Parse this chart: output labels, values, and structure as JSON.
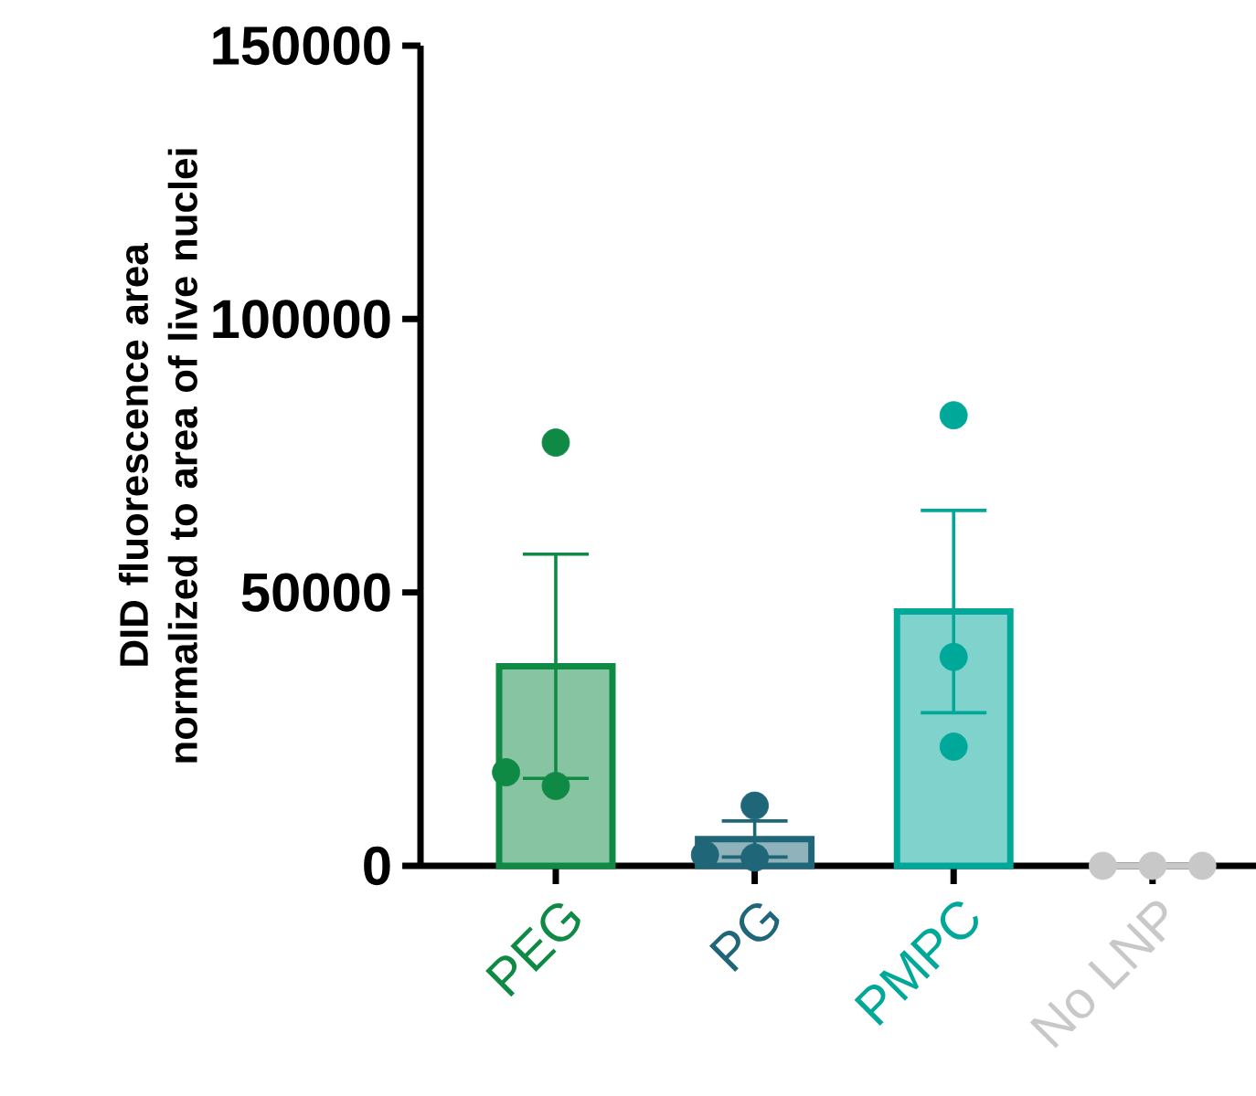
{
  "chart_data": {
    "type": "bar",
    "ylabel": "DID fluorescence area normalized to area of live nuclei",
    "categories": [
      "PEG",
      "PG",
      "PMPC",
      "No LNP"
    ],
    "series": [
      {
        "type": "bar",
        "values": [
          36500,
          4900,
          46500,
          0
        ],
        "errors": [
          20500,
          3300,
          18500,
          null
        ],
        "colors": [
          "#0f8a45",
          "#1f6678",
          "#00a899",
          "#c8c8c8"
        ]
      },
      {
        "type": "scatter",
        "x": [
          "PEG",
          "PEG",
          "PEG",
          "PG",
          "PG",
          "PG",
          "PMPC",
          "PMPC",
          "PMPC",
          "No LNP",
          "No LNP",
          "No LNP"
        ],
        "values": [
          77400,
          14600,
          17100,
          11000,
          1500,
          2000,
          82400,
          38200,
          21800,
          0,
          0,
          0
        ],
        "colors": [
          "#0f8a45",
          "#0f8a45",
          "#0f8a45",
          "#1f6678",
          "#1f6678",
          "#1f6678",
          "#00a899",
          "#00a899",
          "#00a899",
          "#c8c8c8",
          "#c8c8c8",
          "#c8c8c8"
        ]
      }
    ],
    "marker": "circle",
    "ylim": [
      0,
      150000
    ],
    "yticks": [
      0,
      50000,
      100000,
      150000
    ],
    "grid": false
  }
}
